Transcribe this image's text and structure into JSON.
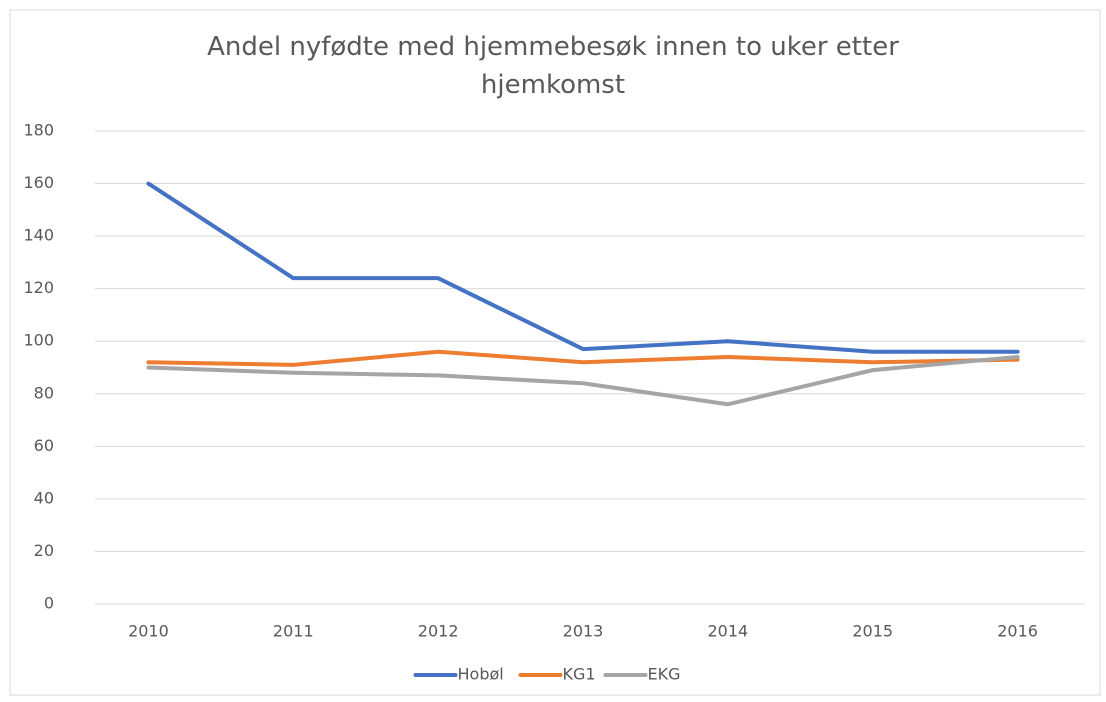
{
  "chart_data": {
    "type": "line",
    "title": "Andel nyfødte med hjemmebesøk innen to uker etter hjemkomst",
    "categories": [
      "2010",
      "2011",
      "2012",
      "2013",
      "2014",
      "2015",
      "2016"
    ],
    "series": [
      {
        "name": "Hobøl",
        "color": "#4472c4",
        "values": [
          160,
          124,
          124,
          97,
          100,
          96,
          96
        ]
      },
      {
        "name": "KG1",
        "color": "#ed7d31",
        "values": [
          92,
          91,
          96,
          92,
          94,
          92,
          93
        ]
      },
      {
        "name": "EKG",
        "color": "#a5a5a5",
        "values": [
          90,
          88,
          87,
          84,
          76,
          89,
          94
        ]
      }
    ],
    "ylim": [
      0,
      180
    ],
    "yticks": [
      0,
      20,
      40,
      60,
      80,
      100,
      120,
      140,
      160,
      180
    ],
    "grid": true,
    "legend": "bottom"
  }
}
